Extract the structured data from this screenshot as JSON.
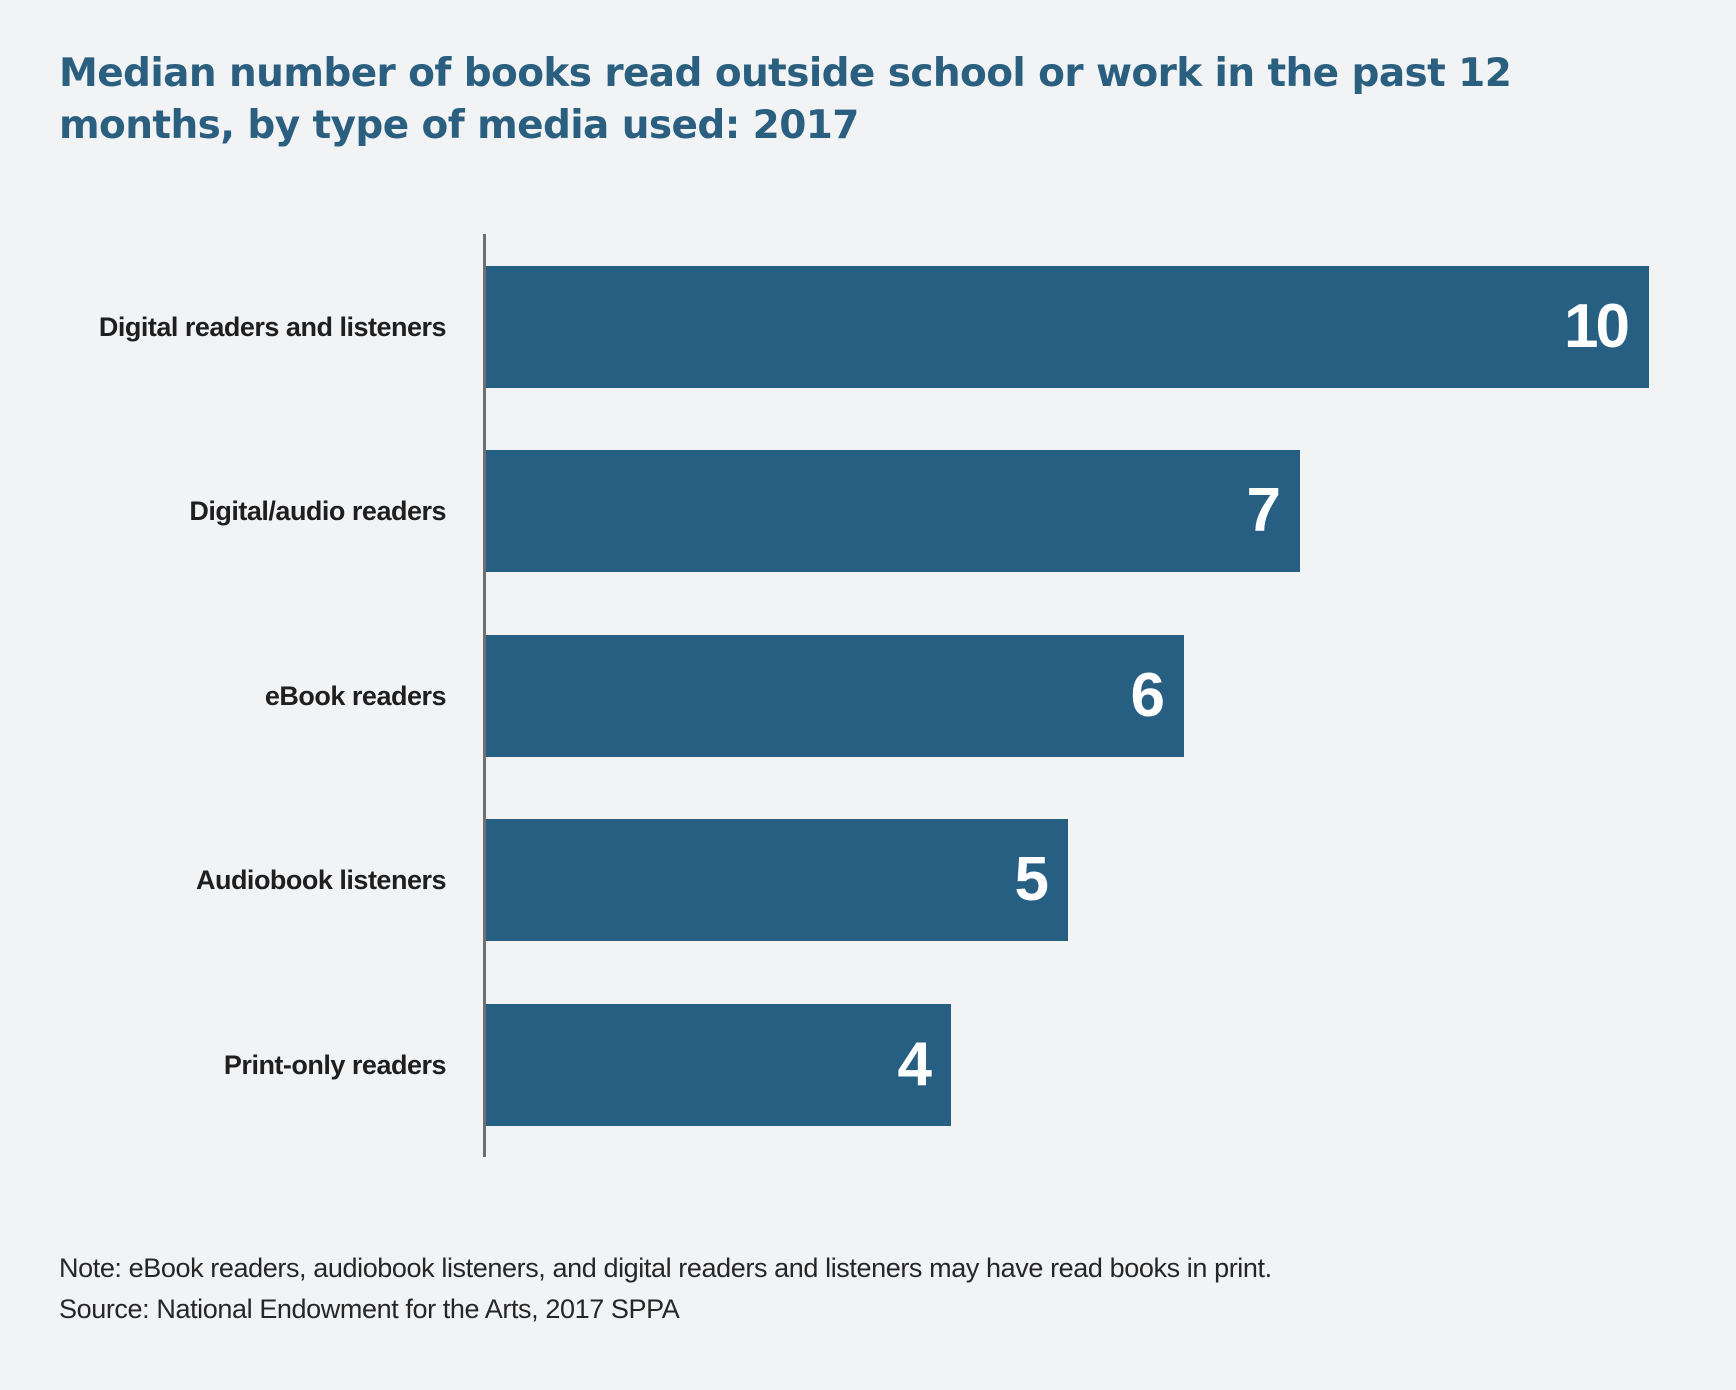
{
  "title": "Median number of books read outside school or work in the past 12 months, by type of media used: 2017",
  "colors": {
    "background": "#f2f3f5",
    "bar": "#265f81",
    "title": "#2a5f80",
    "axis": "#6f6f6f",
    "label": "#1f1f1f",
    "value_label": "#ffffff"
  },
  "chart_data": {
    "type": "bar",
    "orientation": "horizontal",
    "title": "Median number of books read outside school or work in the past 12 months, by type of media used: 2017",
    "categories": [
      "Digital readers and listeners",
      "Digital/audio readers",
      "eBook readers",
      "Audiobook listeners",
      "Print-only readers"
    ],
    "values": [
      10,
      7,
      6,
      5,
      4
    ],
    "data_labels": [
      "10",
      "7",
      "6",
      "5",
      "4"
    ],
    "xlabel": "",
    "ylabel": "",
    "xlim": [
      0,
      10
    ],
    "grid": false,
    "legend": null,
    "value_labels_position": "inside-end"
  },
  "bars": [
    {
      "label": "Digital readers and listeners",
      "value": 10,
      "value_label": "10"
    },
    {
      "label": "Digital/audio readers",
      "value": 7,
      "value_label": "7"
    },
    {
      "label": "eBook readers",
      "value": 6,
      "value_label": "6"
    },
    {
      "label": "Audiobook listeners",
      "value": 5,
      "value_label": "5"
    },
    {
      "label": "Print-only readers",
      "value": 4,
      "value_label": "4"
    }
  ],
  "footer": {
    "note": "Note: eBook readers, audiobook listeners, and digital readers and listeners may have read books in print.",
    "source": "Source: National Endowment for the Arts, 2017 SPPA"
  }
}
